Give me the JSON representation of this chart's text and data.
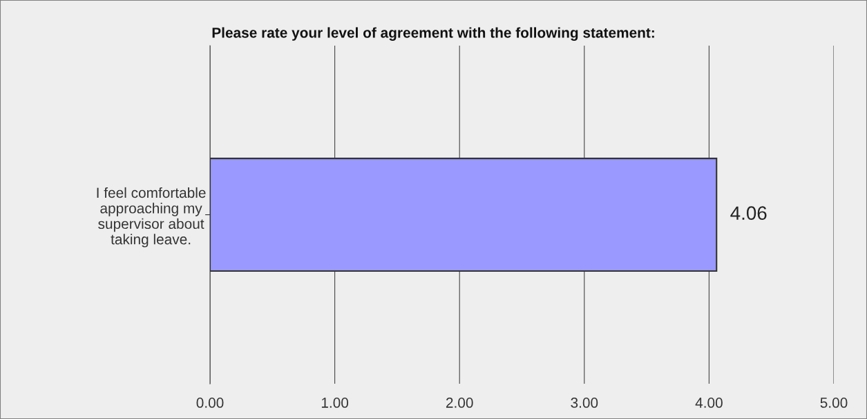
{
  "chart_data": {
    "type": "bar",
    "orientation": "horizontal",
    "title": "Please rate your level of agreement with the following statement:",
    "categories": [
      "I feel comfortable\napproaching my\nsupervisor about\ntaking leave."
    ],
    "values": [
      4.06
    ],
    "color": "#9999ff",
    "data_labels": true,
    "xlim": [
      0,
      5
    ],
    "xticks": [
      {
        "value": 0,
        "label": "0.00"
      },
      {
        "value": 1,
        "label": "1.00"
      },
      {
        "value": 2,
        "label": "2.00"
      },
      {
        "value": 3,
        "label": "3.00"
      },
      {
        "value": 4,
        "label": "4.00"
      },
      {
        "value": 5,
        "label": "5.00"
      }
    ],
    "grid": "x",
    "legend": false
  }
}
